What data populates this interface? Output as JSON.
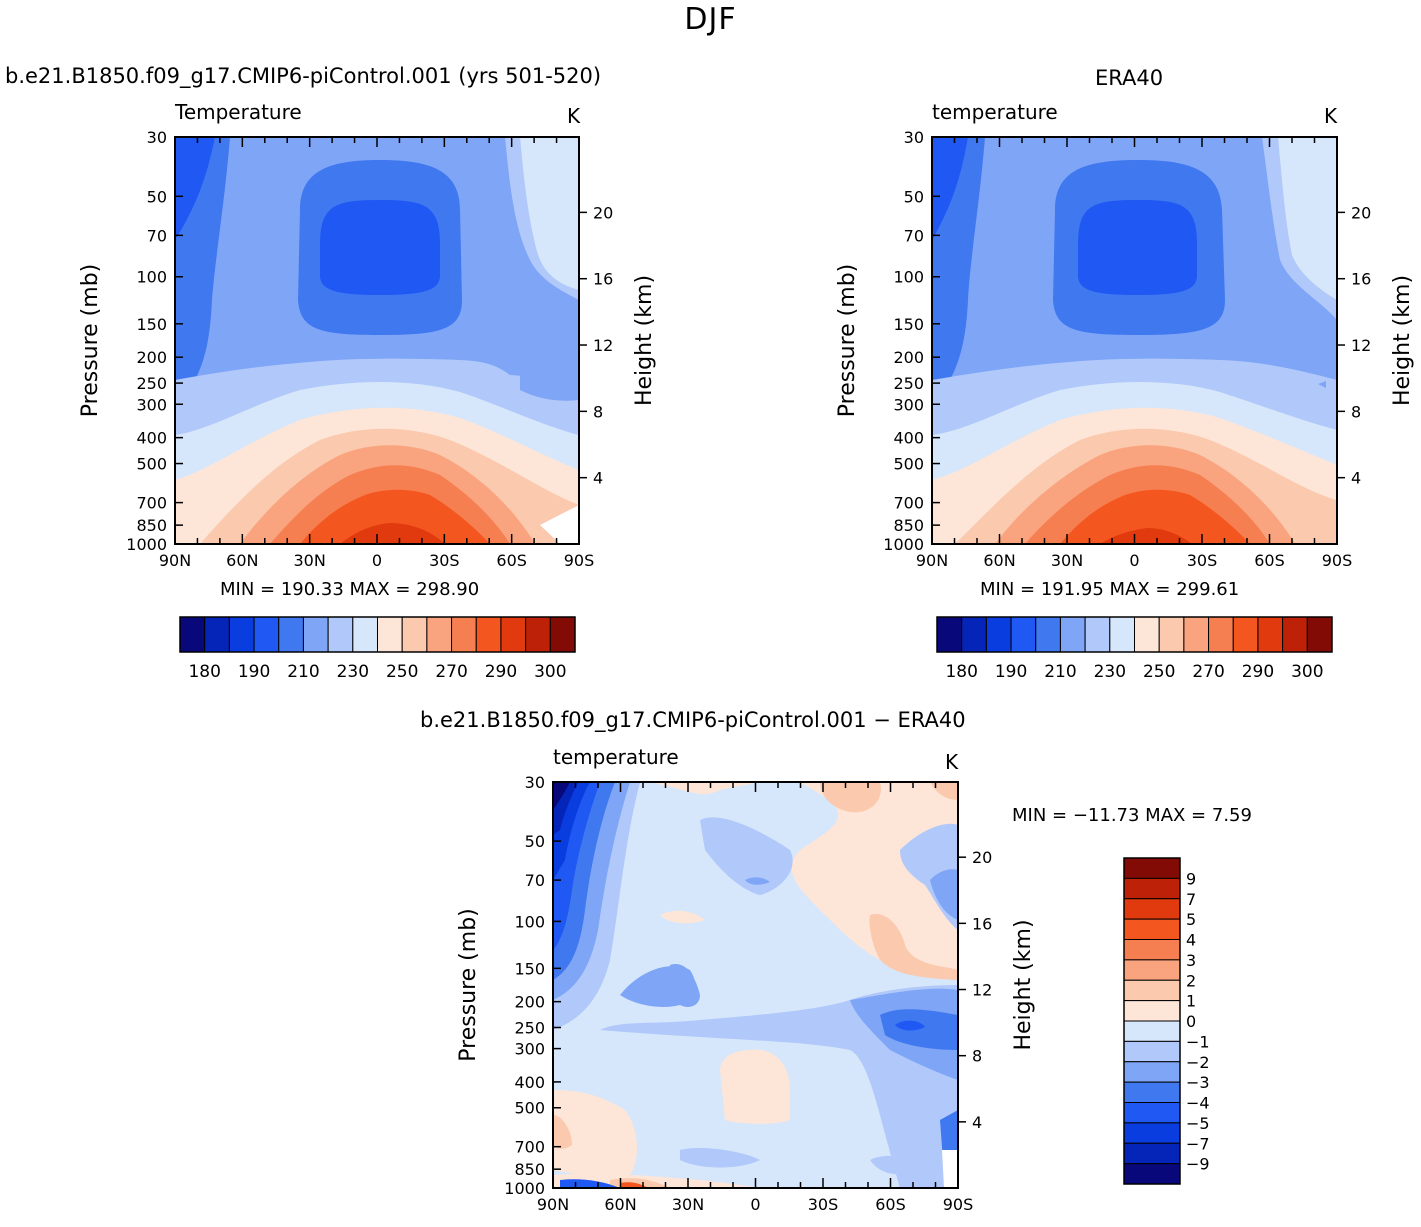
{
  "title": "DJF",
  "panels": [
    {
      "id": "model",
      "case_label": "b.e21.B1850.f09_g17.CMIP6-piControl.001 (yrs 501-520)",
      "variable_label": "Temperature",
      "units": "K",
      "y_left_label": "Pressure (mb)",
      "y_right_label": "Height (km)",
      "minmax": "MIN = 190.33   MAX = 298.90"
    },
    {
      "id": "obs",
      "case_label": "ERA40",
      "variable_label": "temperature",
      "units": "K",
      "y_left_label": "Pressure (mb)",
      "y_right_label": "Height (km)",
      "minmax": "MIN = 191.95   MAX = 299.61"
    },
    {
      "id": "diff",
      "case_label": "b.e21.B1850.f09_g17.CMIP6-piControl.001 − ERA40",
      "variable_label": "temperature",
      "units": "K",
      "y_left_label": "Pressure (mb)",
      "y_right_label": "Height (km)",
      "minmax": "MIN = −11.73   MAX =    7.59"
    }
  ],
  "chart_data": [
    {
      "type": "heatmap",
      "title": "Temperature",
      "xlabel": "",
      "ylabel": "Pressure (mb)",
      "y2label": "Height (km)",
      "x_ticks": [
        "90N",
        "60N",
        "30N",
        "0",
        "30S",
        "60S",
        "90S"
      ],
      "y_ticks": [
        30,
        50,
        70,
        100,
        150,
        200,
        250,
        300,
        400,
        500,
        700,
        850,
        1000
      ],
      "y2_ticks": [
        4,
        8,
        12,
        16,
        20
      ],
      "ylim": [
        1000,
        30
      ],
      "y_scale": "log",
      "min": 190.33,
      "max": 298.9,
      "colorbar_levels": [
        180,
        185,
        190,
        200,
        210,
        220,
        230,
        240,
        250,
        260,
        270,
        280,
        290,
        295,
        300
      ],
      "colorbar_labels": [
        "180",
        "190",
        "210",
        "230",
        "250",
        "270",
        "290",
        "300"
      ]
    },
    {
      "type": "heatmap",
      "title": "temperature",
      "xlabel": "",
      "ylabel": "Pressure (mb)",
      "y2label": "Height (km)",
      "x_ticks": [
        "90N",
        "60N",
        "30N",
        "0",
        "30S",
        "60S",
        "90S"
      ],
      "y_ticks": [
        30,
        50,
        70,
        100,
        150,
        200,
        250,
        300,
        400,
        500,
        700,
        850,
        1000
      ],
      "y2_ticks": [
        4,
        8,
        12,
        16,
        20
      ],
      "ylim": [
        1000,
        30
      ],
      "y_scale": "log",
      "min": 191.95,
      "max": 299.61,
      "colorbar_levels": [
        180,
        185,
        190,
        200,
        210,
        220,
        230,
        240,
        250,
        260,
        270,
        280,
        290,
        295,
        300
      ],
      "colorbar_labels": [
        "180",
        "190",
        "210",
        "230",
        "250",
        "270",
        "290",
        "300"
      ]
    },
    {
      "type": "heatmap",
      "title": "temperature",
      "xlabel": "",
      "ylabel": "Pressure (mb)",
      "y2label": "Height (km)",
      "x_ticks": [
        "90N",
        "60N",
        "30N",
        "0",
        "30S",
        "60S",
        "90S"
      ],
      "y_ticks": [
        30,
        50,
        70,
        100,
        150,
        200,
        250,
        300,
        400,
        500,
        700,
        850,
        1000
      ],
      "y2_ticks": [
        4,
        8,
        12,
        16,
        20
      ],
      "ylim": [
        1000,
        30
      ],
      "y_scale": "log",
      "min": -11.73,
      "max": 7.59,
      "colorbar_levels": [
        -9,
        -7,
        -5,
        -4,
        -3,
        -2,
        -1,
        0,
        1,
        2,
        3,
        4,
        5,
        7,
        9
      ],
      "colorbar_labels": [
        "9",
        "7",
        "5",
        "4",
        "3",
        "2",
        "1",
        "0",
        "−1",
        "−2",
        "−3",
        "−4",
        "−5",
        "−7",
        "−9"
      ]
    }
  ],
  "colors": {
    "full_scale": [
      "#08087a",
      "#0524b8",
      "#0a3de0",
      "#1f58f2",
      "#4078f0",
      "#7fa5f6",
      "#b0c8fa",
      "#d6e6fb",
      "#fde6d8",
      "#fbc9ae",
      "#f9a47e",
      "#f67f52",
      "#f4561f",
      "#e03a0e",
      "#bd2208",
      "#830b05"
    ],
    "diff_scale": [
      "#830b05",
      "#bd2208",
      "#e03a0e",
      "#f4561f",
      "#f67f52",
      "#f9a47e",
      "#fbc9ae",
      "#fde6d8",
      "#d6e6fb",
      "#b0c8fa",
      "#7fa5f6",
      "#4078f0",
      "#1f58f2",
      "#0a3de0",
      "#0524b8",
      "#08087a"
    ]
  }
}
